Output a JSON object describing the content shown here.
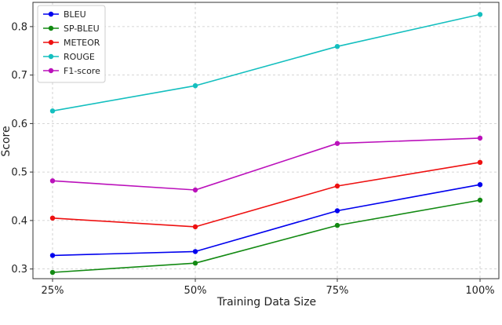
{
  "chart_data": {
    "type": "line",
    "title": "",
    "xlabel": "Training Data Size",
    "ylabel": "Score",
    "categories": [
      "25%",
      "50%",
      "75%",
      "100%"
    ],
    "ylim": [
      0.28,
      0.85
    ],
    "yticks": [
      0.3,
      0.4,
      0.5,
      0.6,
      0.7,
      0.8
    ],
    "ytick_labels": [
      "0.3",
      "0.4",
      "0.5",
      "0.6",
      "0.7",
      "0.8"
    ],
    "grid": true,
    "legend_position": "top-left",
    "series": [
      {
        "name": "BLEU",
        "color": "#0000ee",
        "values": [
          0.328,
          0.336,
          0.42,
          0.474
        ]
      },
      {
        "name": "SP-BLEU",
        "color": "#138a13",
        "values": [
          0.293,
          0.312,
          0.39,
          0.442
        ]
      },
      {
        "name": "METEOR",
        "color": "#ee1111",
        "values": [
          0.405,
          0.387,
          0.471,
          0.52
        ]
      },
      {
        "name": "ROUGE",
        "color": "#14bfbf",
        "values": [
          0.626,
          0.678,
          0.759,
          0.825
        ]
      },
      {
        "name": "F1-score",
        "color": "#bb11bb",
        "values": [
          0.482,
          0.463,
          0.559,
          0.57
        ]
      }
    ]
  }
}
